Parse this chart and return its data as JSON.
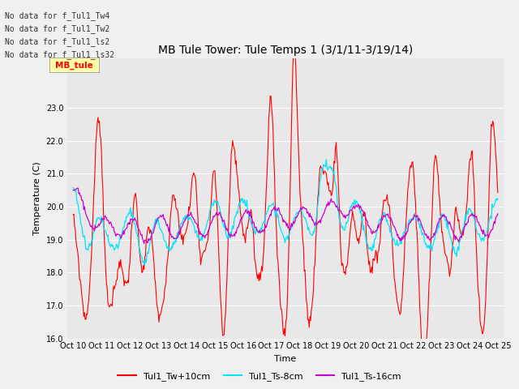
{
  "title": "MB Tule Tower: Tule Temps 1 (3/1/11-3/19/14)",
  "ylabel": "Temperature (C)",
  "xlabel": "Time",
  "plot_bg_color": "#e8e8e8",
  "fig_bg_color": "#f0f0f0",
  "ylim": [
    16.0,
    24.5
  ],
  "yticks": [
    16.0,
    17.0,
    18.0,
    19.0,
    20.0,
    21.0,
    22.0,
    23.0
  ],
  "x_labels": [
    "Oct 10",
    "Oct 11",
    "Oct 12",
    "Oct 13",
    "Oct 14",
    "Oct 15",
    "Oct 16",
    "Oct 17",
    "Oct 18",
    "Oct 19",
    "Oct 20",
    "Oct 21",
    "Oct 22",
    "Oct 23",
    "Oct 24",
    "Oct 25"
  ],
  "no_data_lines": [
    "No data for f_Tul1_Tw4",
    "No data for f_Tul1_Tw2",
    "No data for f_Tul1_ls2",
    "No data for f_Tul1_ls32"
  ],
  "legend_entries": [
    "Tul1_Tw+10cm",
    "Tul1_Ts-8cm",
    "Tul1_Ts-16cm"
  ],
  "line_colors": [
    "#ff0000",
    "#00e5ff",
    "#cc00cc"
  ],
  "tooltip_text": "MB_tule",
  "title_fontsize": 10,
  "tick_fontsize": 7,
  "label_fontsize": 8,
  "nodata_fontsize": 7,
  "legend_fontsize": 8
}
